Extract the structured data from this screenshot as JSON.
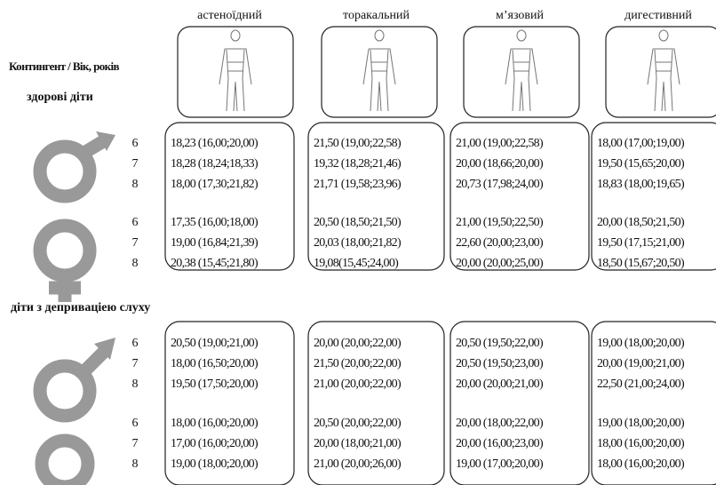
{
  "header": {
    "columns": [
      "астеноїдний",
      "торакальний",
      "м’язовий",
      "дигестивний"
    ],
    "row_label": "Контингент / Вік, років"
  },
  "sections": [
    {
      "title": "здорові діти",
      "ages": [
        [
          "6",
          "7",
          "8"
        ],
        [
          "6",
          "7",
          "8"
        ]
      ],
      "cells": [
        [
          "18,23 (16,00;20,00)",
          "18,28 (18,24;18,33)",
          "18,00 (17,30;21,82)",
          "17,35 (16,00;18,00)",
          "19,00 (16,84;21,39)",
          "20,38 (15,45;21,80)"
        ],
        [
          "21,50 (19,00;22,58)",
          "19,32 (18,28;21,46)",
          "21,71 (19,58;23,96)",
          "20,50 (18,50;21,50)",
          "20,03 (18,00;21,82)",
          "19,08(15,45;24,00)"
        ],
        [
          "21,00 (19,00;22,58)",
          "20,00 (18,66;20,00)",
          "20,73 (17,98;24,00)",
          "21,00 (19,50;22,50)",
          "22,60 (20,00;23,00)",
          "20,00 (20,00;25,00)"
        ],
        [
          "18,00 (17,00;19,00)",
          "19,50 (15,65;20,00)",
          "18,83 (18,00;19,65)",
          "20,00 (18,50;21,50)",
          "19,50 (17,15;21,00)",
          "18,50 (15,67;20,50)"
        ]
      ]
    },
    {
      "title": "діти з деприваціею слуху",
      "ages": [
        [
          "6",
          "7",
          "8"
        ],
        [
          "6",
          "7",
          "8"
        ]
      ],
      "cells": [
        [
          "20,50 (19,00;21,00)",
          "18,00 (16,50;20,00)",
          "19,50 (17,50;20,00)",
          "18,00 (16,00;20,00)",
          "17,00 (16,00;20,00)",
          "19,00 (18,00;20,00)"
        ],
        [
          "20,00 (20,00;22,00)",
          "21,50 (20,00;22,00)",
          "21,00 (20,00;22,00)",
          "20,50 (20,00;22,00)",
          "20,00 (18,00;21,00)",
          "21,00 (20,00;26,00)"
        ],
        [
          "20,50 (19,50;22,00)",
          "20,50 (19,50;23,00)",
          "20,00 (20,00;21,00)",
          "20,00 (18,00;22,00)",
          "20,00 (16,00;23,00)",
          "19,00 (17,00;20,00)"
        ],
        [
          "19,00 (18,00;20,00)",
          "20,00 (19,00;21,00)",
          "22,50 (21,00;24,00)",
          "19,00 (18,00;20,00)",
          "18,00 (16,00;20,00)",
          "18,00 (16,00;20,00)"
        ]
      ]
    }
  ]
}
